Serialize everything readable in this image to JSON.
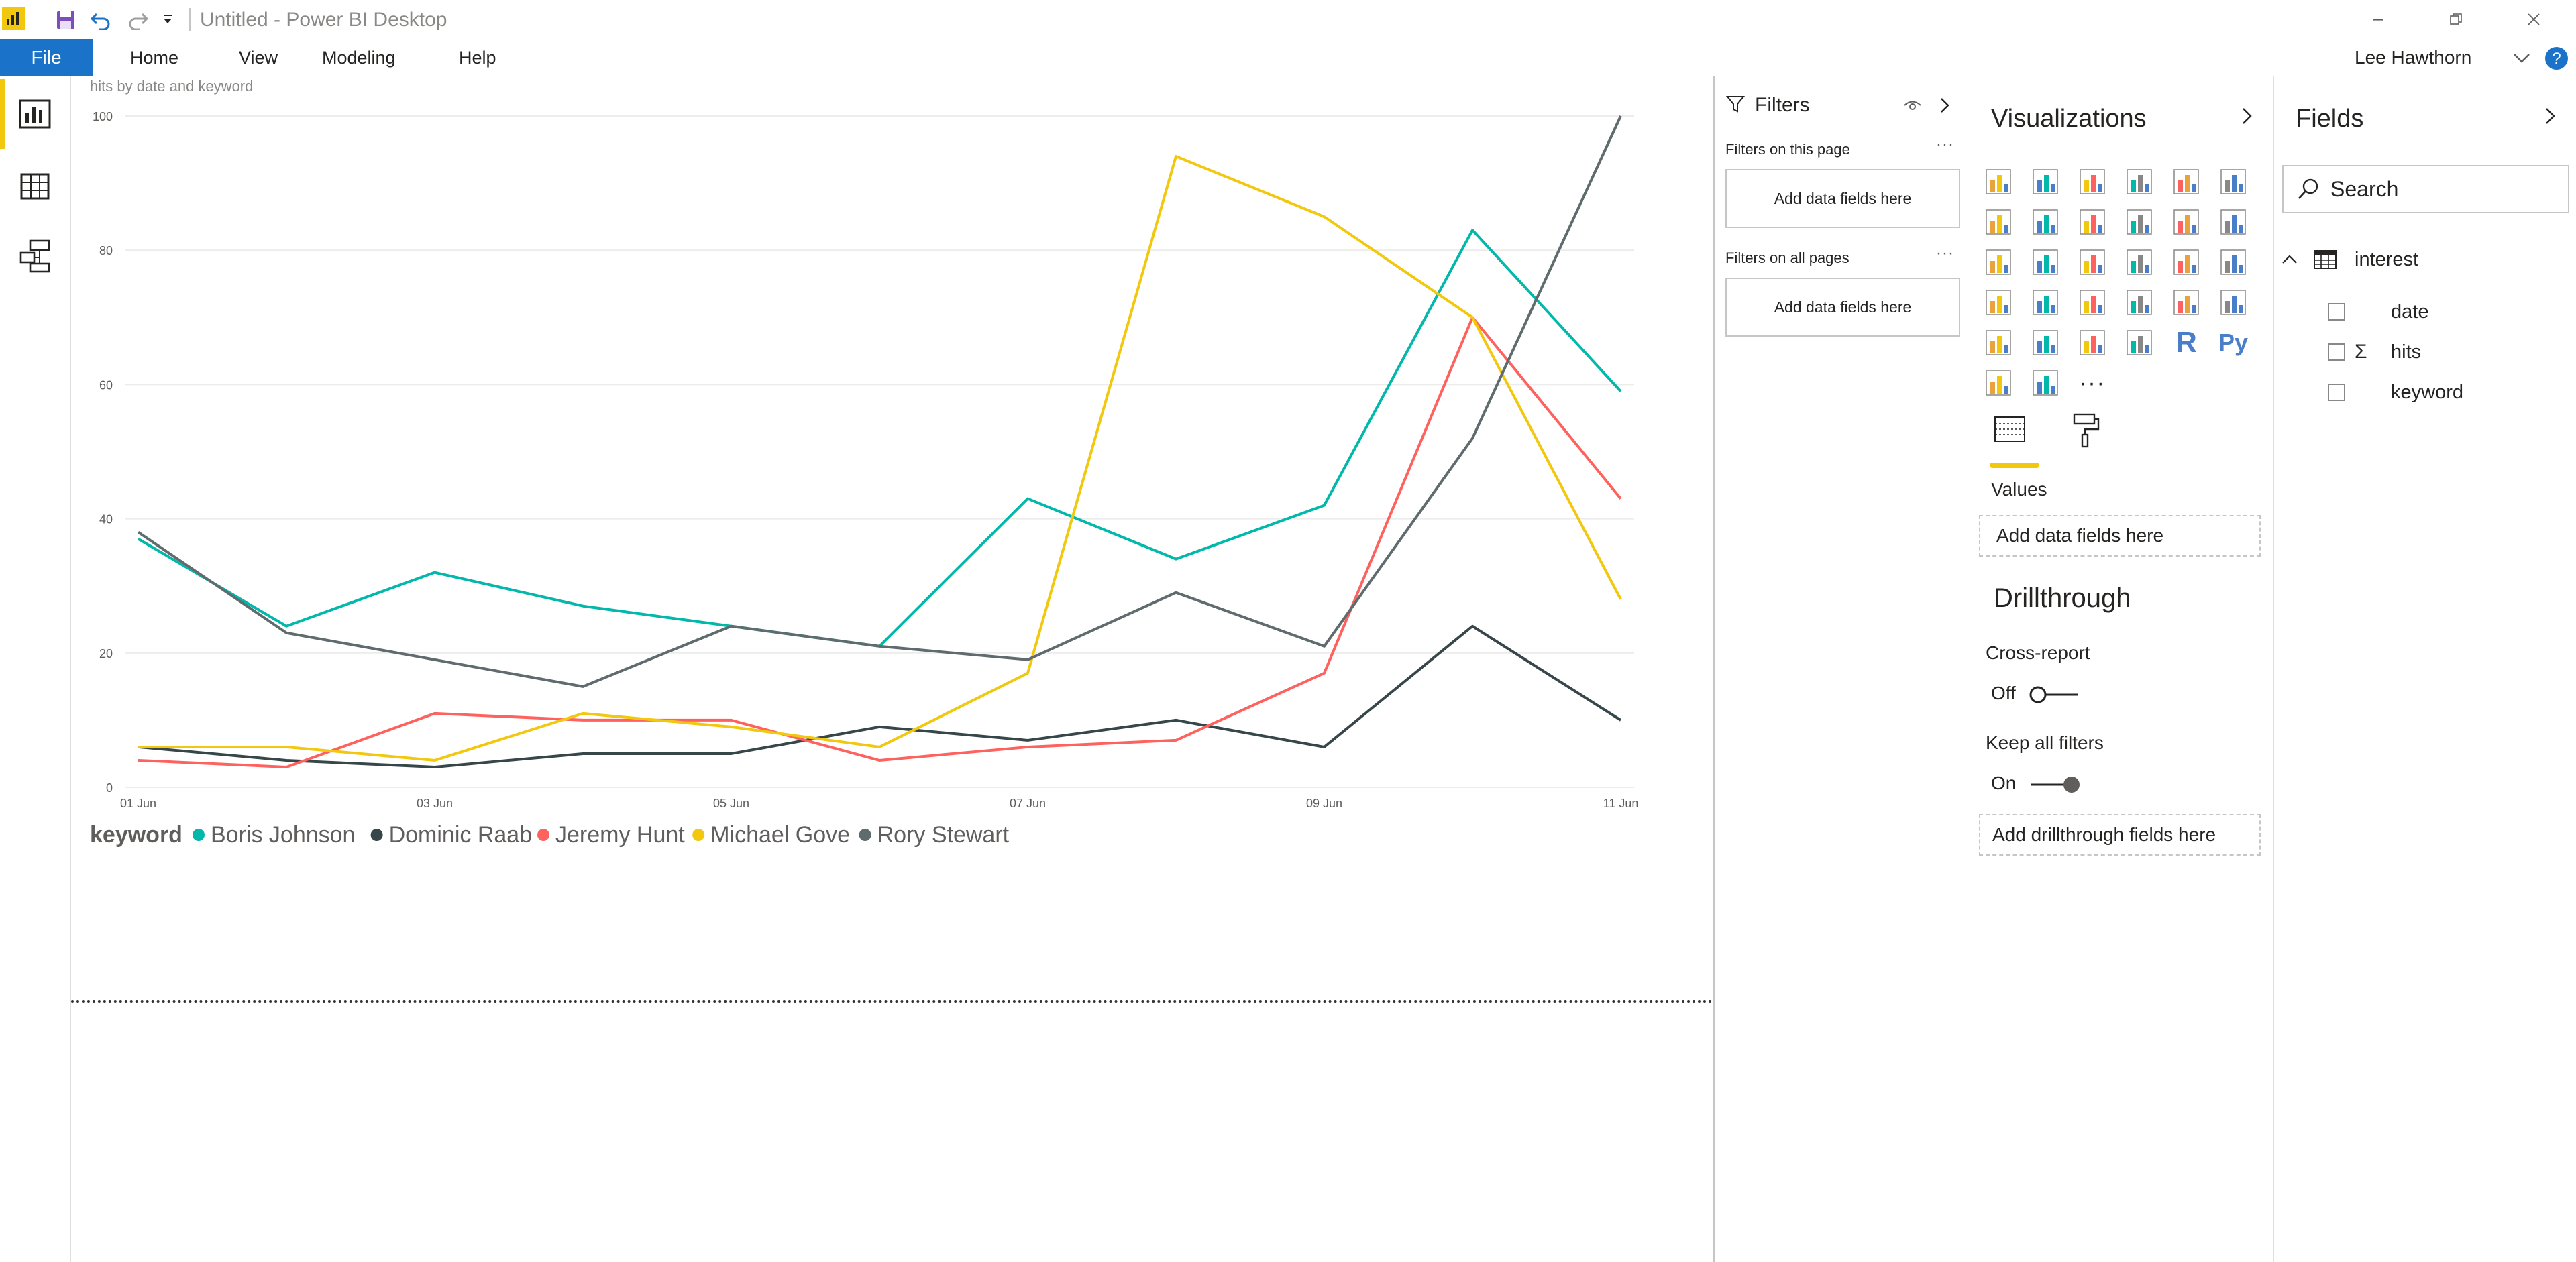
{
  "app": {
    "title": "Untitled - Power BI Desktop",
    "icons": [
      "powerbi-logo-icon",
      "save-icon",
      "undo-icon",
      "redo-icon",
      "customize-dropdown-icon"
    ]
  },
  "menu": {
    "file": "File",
    "items": [
      "Home",
      "View",
      "Modeling",
      "Help"
    ],
    "user": "Lee Hawthorn"
  },
  "rail": {
    "items": [
      "report-view-icon",
      "data-view-icon",
      "model-view-icon"
    ],
    "active": "report-view-icon"
  },
  "canvas": {
    "chart_title": "hits by date and keyword",
    "legend_title": "keyword"
  },
  "chart_data": {
    "type": "line",
    "title": "hits by date and keyword",
    "xlabel": "",
    "ylabel": "",
    "x": [
      "01 Jun",
      "02 Jun",
      "03 Jun",
      "04 Jun",
      "05 Jun",
      "06 Jun",
      "07 Jun",
      "08 Jun",
      "09 Jun",
      "10 Jun",
      "11 Jun"
    ],
    "x_tick_labels": [
      "01 Jun",
      "03 Jun",
      "05 Jun",
      "07 Jun",
      "09 Jun",
      "11 Jun"
    ],
    "ylim": [
      0,
      100
    ],
    "y_ticks": [
      0,
      20,
      40,
      60,
      80,
      100
    ],
    "grid": true,
    "legend_position": "bottom-left",
    "legend_title": "keyword",
    "series": [
      {
        "name": "Boris Johnson",
        "color": "#01B8AA",
        "values": [
          37,
          24,
          32,
          27,
          24,
          21,
          43,
          34,
          42,
          83,
          59
        ]
      },
      {
        "name": "Dominic Raab",
        "color": "#374649",
        "values": [
          6,
          4,
          3,
          5,
          5,
          9,
          7,
          10,
          6,
          24,
          10
        ]
      },
      {
        "name": "Jeremy Hunt",
        "color": "#FD625E",
        "values": [
          4,
          3,
          11,
          10,
          10,
          4,
          6,
          7,
          17,
          70,
          43
        ]
      },
      {
        "name": "Michael Gove",
        "color": "#F2C80F",
        "values": [
          6,
          6,
          4,
          11,
          9,
          6,
          17,
          94,
          85,
          70,
          28
        ]
      },
      {
        "name": "Rory Stewart",
        "color": "#5F6B6D",
        "values": [
          38,
          23,
          19,
          15,
          24,
          21,
          19,
          29,
          21,
          52,
          100
        ]
      }
    ]
  },
  "filters": {
    "title": "Filters",
    "on_this_page": "Filters on this page",
    "on_all_pages": "Filters on all pages",
    "add_fields": "Add data fields here",
    "more": "···"
  },
  "visualizations": {
    "title": "Visualizations",
    "icon_names": [
      "stacked-bar-chart-icon",
      "stacked-column-chart-icon",
      "clustered-bar-chart-icon",
      "clustered-column-chart-icon",
      "100-stacked-bar-chart-icon",
      "100-stacked-column-chart-icon",
      "line-chart-icon",
      "area-chart-icon",
      "stacked-area-chart-icon",
      "line-and-stacked-column-chart-icon",
      "line-and-clustered-column-chart-icon",
      "ribbon-chart-icon",
      "waterfall-chart-icon",
      "scatter-chart-icon",
      "pie-chart-icon",
      "donut-chart-icon",
      "treemap-icon",
      "map-icon",
      "filled-map-icon",
      "shape-map-icon",
      "funnel-icon",
      "gauge-icon",
      "card-icon",
      "multi-row-card-icon",
      "kpi-icon",
      "slicer-icon",
      "table-icon",
      "matrix-icon",
      "r-visual-icon",
      "python-visual-icon",
      "key-influencers-icon",
      "arcgis-map-icon",
      "more-visuals-icon"
    ],
    "r_label": "R",
    "py_label": "Py",
    "more_label": "···",
    "values_label": "Values",
    "add_fields": "Add data fields here",
    "drillthrough_title": "Drillthrough",
    "cross_report_label": "Cross-report",
    "cross_report_state": "Off",
    "keep_filters_label": "Keep all filters",
    "keep_filters_state": "On",
    "add_drillthrough": "Add drillthrough fields here",
    "accent": "#F2C80F"
  },
  "fields": {
    "title": "Fields",
    "search_placeholder": "Search",
    "table_name": "interest",
    "items": [
      {
        "name": "date",
        "sigma": ""
      },
      {
        "name": "hits",
        "sigma": "Σ"
      },
      {
        "name": "keyword",
        "sigma": ""
      }
    ]
  }
}
